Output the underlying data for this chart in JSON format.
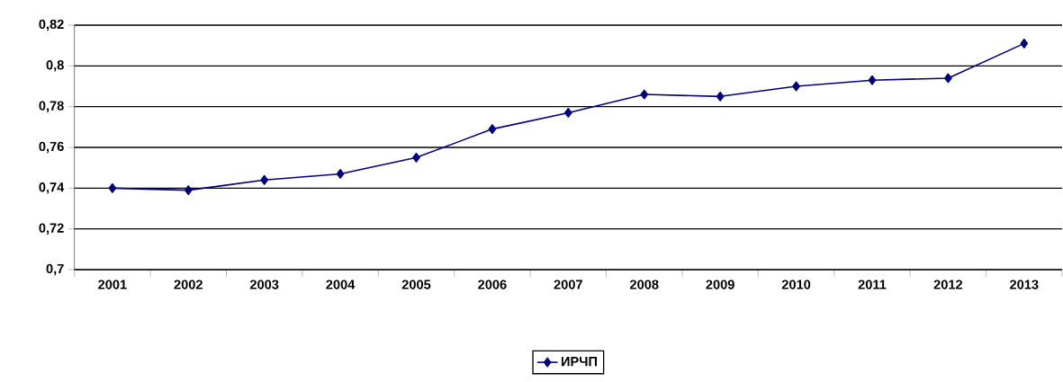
{
  "chart_data": {
    "type": "line",
    "categories": [
      "2001",
      "2002",
      "2003",
      "2004",
      "2005",
      "2006",
      "2007",
      "2008",
      "2009",
      "2010",
      "2011",
      "2012",
      "2013"
    ],
    "series": [
      {
        "name": "ИРЧП",
        "color": "#000080",
        "values": [
          0.74,
          0.739,
          0.744,
          0.747,
          0.755,
          0.769,
          0.777,
          0.786,
          0.785,
          0.79,
          0.793,
          0.794,
          0.811
        ]
      }
    ],
    "ylim": [
      0.7,
      0.82
    ],
    "yticks": [
      {
        "value": 0.7,
        "label": "0,7"
      },
      {
        "value": 0.72,
        "label": "0,72"
      },
      {
        "value": 0.74,
        "label": "0,74"
      },
      {
        "value": 0.76,
        "label": "0,76"
      },
      {
        "value": 0.78,
        "label": "0,78"
      },
      {
        "value": 0.8,
        "label": "0,8"
      },
      {
        "value": 0.82,
        "label": "0,82"
      }
    ],
    "grid": "y",
    "legend": "bottom",
    "marker": "diamond",
    "line_style": "solid"
  }
}
